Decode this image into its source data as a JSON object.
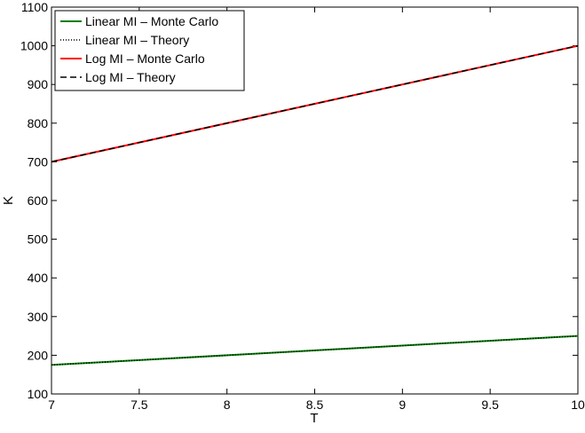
{
  "chart_data": {
    "type": "line",
    "xlabel": "T",
    "ylabel": "K",
    "xlim": [
      7,
      10
    ],
    "ylim": [
      100,
      1100
    ],
    "xticks": [
      7,
      7.5,
      8,
      8.5,
      9,
      9.5,
      10
    ],
    "yticks": [
      100,
      200,
      300,
      400,
      500,
      600,
      700,
      800,
      900,
      1000,
      1100
    ],
    "xtick_labels": [
      "7",
      "7.5",
      "8",
      "8.5",
      "9",
      "9.5",
      "10"
    ],
    "ytick_labels": [
      "100",
      "200",
      "300",
      "400",
      "500",
      "600",
      "700",
      "800",
      "900",
      "1000",
      "1100"
    ],
    "grid": false,
    "legend_position": "top-left",
    "series": [
      {
        "name": "Linear MI – Monte Carlo",
        "color": "#007f00",
        "style": "solid",
        "x": [
          7,
          10
        ],
        "y": [
          175,
          250
        ]
      },
      {
        "name": "Linear MI – Theory",
        "color": "#000000",
        "style": "dotted",
        "x": [
          7,
          10
        ],
        "y": [
          175,
          250
        ]
      },
      {
        "name": "Log MI – Monte Carlo",
        "color": "#ff0000",
        "style": "solid",
        "x": [
          7,
          10
        ],
        "y": [
          700,
          1000
        ]
      },
      {
        "name": "Log MI – Theory",
        "color": "#000000",
        "style": "dashed",
        "x": [
          7,
          10
        ],
        "y": [
          700,
          1000
        ]
      }
    ]
  }
}
